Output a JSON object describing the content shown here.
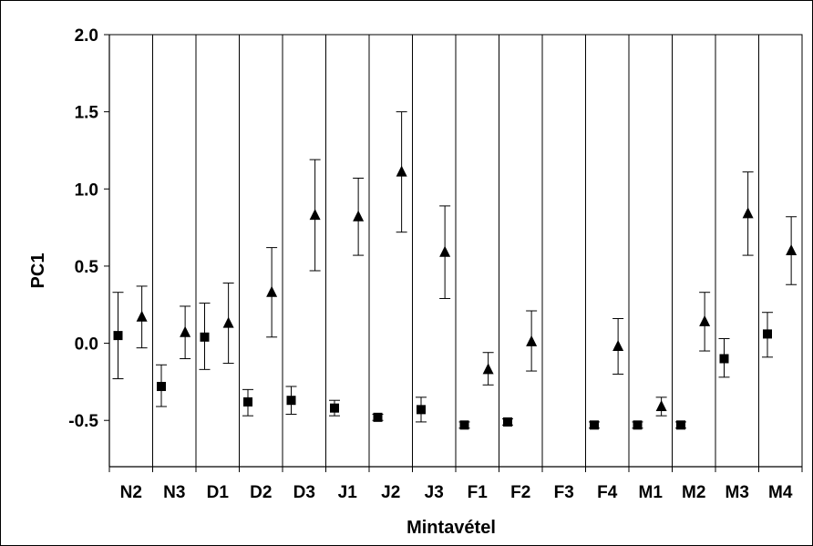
{
  "chart_data": {
    "type": "scatter",
    "title": "",
    "xlabel": "Mintavétel",
    "ylabel": "PC1",
    "ylim": [
      -0.8,
      2.0
    ],
    "yticks": [
      "2.0",
      "1.5",
      "1.0",
      "0.5",
      "0.0",
      "-0.5"
    ],
    "ytick_values": [
      2.0,
      1.5,
      1.0,
      0.5,
      0.0,
      -0.5
    ],
    "grid": "vertical category separators",
    "categories": [
      "N2",
      "N3",
      "D1",
      "D2",
      "D3",
      "J1",
      "J2",
      "J3",
      "F1",
      "F2",
      "F3",
      "F4",
      "M1",
      "M2",
      "M3",
      "M4"
    ],
    "series": [
      {
        "marker": "square",
        "values": [
          0.05,
          -0.28,
          0.04,
          -0.38,
          -0.37,
          -0.42,
          -0.48,
          -0.43,
          -0.53,
          -0.51,
          null,
          -0.53,
          -0.53,
          -0.53,
          -0.1,
          0.06
        ],
        "err_low": [
          -0.23,
          -0.41,
          -0.17,
          -0.47,
          -0.46,
          -0.47,
          -0.5,
          -0.51,
          -0.55,
          -0.53,
          null,
          -0.55,
          -0.55,
          -0.55,
          -0.22,
          -0.09
        ],
        "err_high": [
          0.33,
          -0.14,
          0.26,
          -0.3,
          -0.28,
          -0.37,
          -0.46,
          -0.35,
          -0.51,
          -0.49,
          null,
          -0.51,
          -0.51,
          -0.51,
          0.03,
          0.2
        ]
      },
      {
        "marker": "triangle",
        "values": [
          0.17,
          0.07,
          0.13,
          0.33,
          0.83,
          0.82,
          1.11,
          0.59,
          -0.17,
          0.01,
          null,
          -0.02,
          -0.41,
          0.14,
          0.84,
          0.6
        ],
        "err_low": [
          -0.03,
          -0.1,
          -0.13,
          0.04,
          0.47,
          0.57,
          0.72,
          0.29,
          -0.27,
          -0.18,
          null,
          -0.2,
          -0.47,
          -0.05,
          0.57,
          0.38
        ],
        "err_high": [
          0.37,
          0.24,
          0.39,
          0.62,
          1.19,
          1.07,
          1.5,
          0.89,
          -0.06,
          0.21,
          null,
          0.16,
          -0.35,
          0.33,
          1.11,
          0.82
        ]
      }
    ]
  }
}
